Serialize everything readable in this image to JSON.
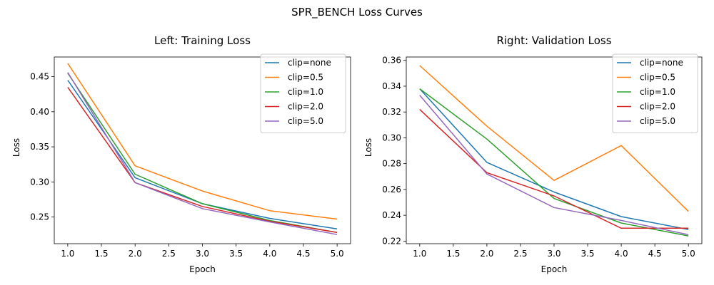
{
  "figure": {
    "title": "SPR_BENCH Loss Curves"
  },
  "chart_data": [
    {
      "type": "line",
      "title": "Left: Training Loss",
      "xlabel": "Epoch",
      "ylabel": "Loss",
      "x": [
        1,
        2,
        3,
        4,
        5
      ],
      "xlim": [
        0.8,
        5.2
      ],
      "ylim": [
        0.212,
        0.478
      ],
      "xticks": [
        "1.0",
        "1.5",
        "2.0",
        "2.5",
        "3.0",
        "3.5",
        "4.0",
        "4.5",
        "5.0"
      ],
      "yticks": [
        "0.25",
        "0.30",
        "0.35",
        "0.40",
        "0.45"
      ],
      "grid": false,
      "legend": "top-right",
      "series": [
        {
          "name": "clip=none",
          "color": "#1f77b4",
          "values": [
            0.445,
            0.306,
            0.269,
            0.248,
            0.233
          ]
        },
        {
          "name": "clip=0.5",
          "color": "#ff7f0e",
          "values": [
            0.469,
            0.323,
            0.287,
            0.259,
            0.247
          ]
        },
        {
          "name": "clip=1.0",
          "color": "#2ca02c",
          "values": [
            0.455,
            0.311,
            0.269,
            0.245,
            0.228
          ]
        },
        {
          "name": "clip=2.0",
          "color": "#d62728",
          "values": [
            0.435,
            0.299,
            0.265,
            0.244,
            0.228
          ]
        },
        {
          "name": "clip=5.0",
          "color": "#9467bd",
          "values": [
            0.456,
            0.299,
            0.262,
            0.243,
            0.225
          ]
        }
      ]
    },
    {
      "type": "line",
      "title": "Right: Validation Loss",
      "xlabel": "Epoch",
      "ylabel": "Loss",
      "x": [
        1,
        2,
        3,
        4,
        5
      ],
      "xlim": [
        0.8,
        5.2
      ],
      "ylim": [
        0.218,
        0.3626
      ],
      "xticks": [
        "1.0",
        "1.5",
        "2.0",
        "2.5",
        "3.0",
        "3.5",
        "4.0",
        "4.5",
        "5.0"
      ],
      "yticks": [
        "0.22",
        "0.24",
        "0.26",
        "0.28",
        "0.30",
        "0.32",
        "0.34",
        "0.36"
      ],
      "grid": false,
      "legend": "top-right",
      "series": [
        {
          "name": "clip=none",
          "color": "#1f77b4",
          "values": [
            0.338,
            0.281,
            0.258,
            0.239,
            0.229
          ]
        },
        {
          "name": "clip=0.5",
          "color": "#ff7f0e",
          "values": [
            0.356,
            0.309,
            0.267,
            0.294,
            0.243
          ]
        },
        {
          "name": "clip=1.0",
          "color": "#2ca02c",
          "values": [
            0.338,
            0.299,
            0.253,
            0.234,
            0.224
          ]
        },
        {
          "name": "clip=2.0",
          "color": "#d62728",
          "values": [
            0.322,
            0.273,
            0.255,
            0.23,
            0.23
          ]
        },
        {
          "name": "clip=5.0",
          "color": "#9467bd",
          "values": [
            0.333,
            0.272,
            0.246,
            0.236,
            0.225
          ]
        }
      ]
    }
  ]
}
